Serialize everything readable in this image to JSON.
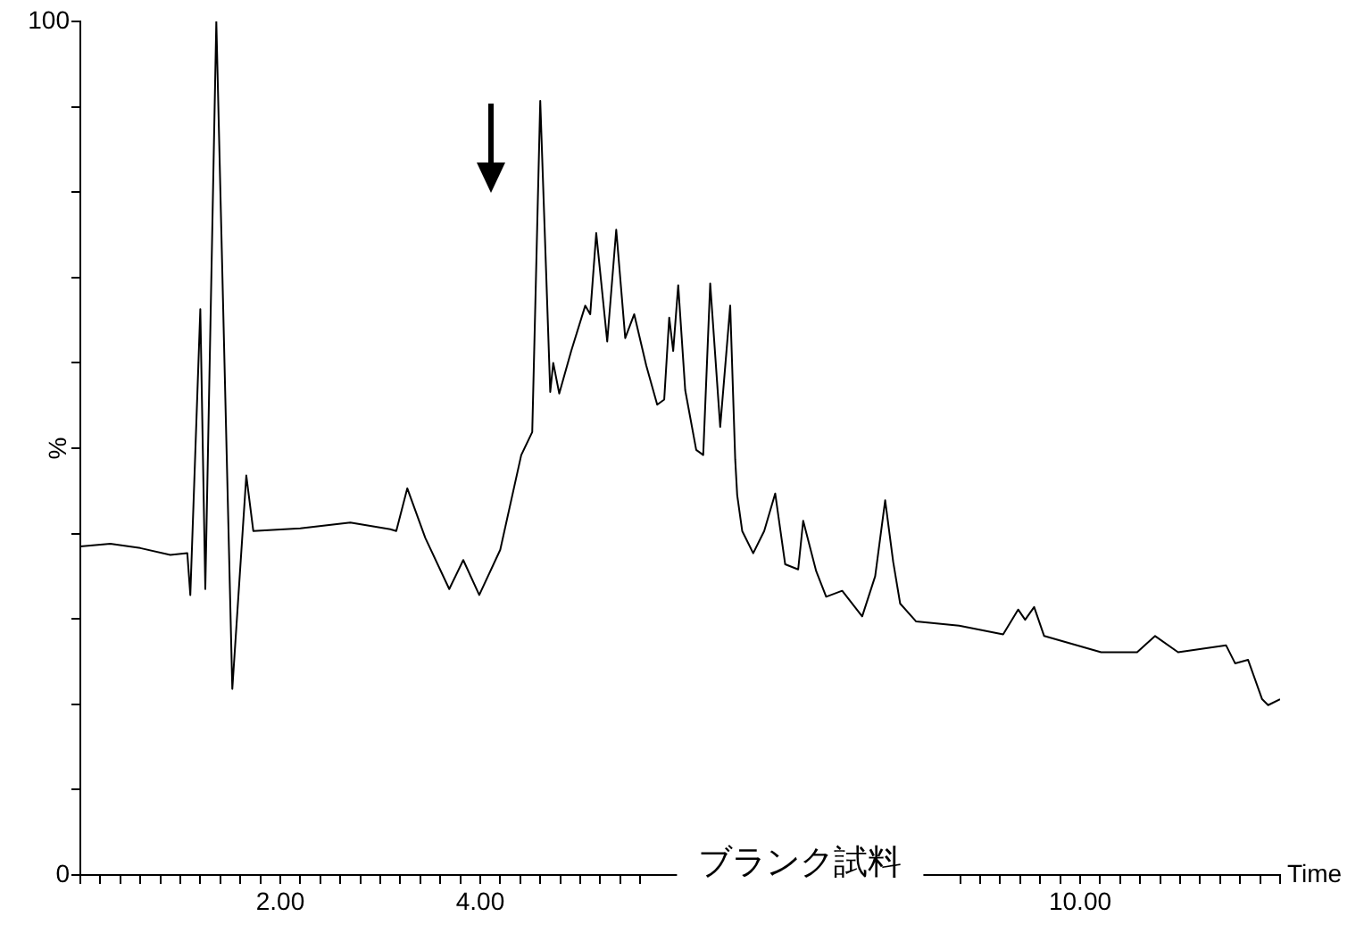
{
  "chart_data": {
    "type": "line",
    "title": "ブランク試料",
    "xlabel": "Time",
    "ylabel": "%",
    "xlim": [
      0,
      12
    ],
    "ylim": [
      0,
      100
    ],
    "xticks": [
      {
        "value": 0,
        "label": null
      },
      {
        "value": 0.2,
        "label": null
      },
      {
        "value": 0.4,
        "label": null
      },
      {
        "value": 0.6,
        "label": null
      },
      {
        "value": 0.8,
        "label": null
      },
      {
        "value": 1,
        "label": null
      },
      {
        "value": 1.2,
        "label": null
      },
      {
        "value": 1.4,
        "label": null
      },
      {
        "value": 1.6,
        "label": null
      },
      {
        "value": 1.8,
        "label": null
      },
      {
        "value": 2,
        "label": "2.00"
      },
      {
        "value": 2.2,
        "label": null
      },
      {
        "value": 2.4,
        "label": null
      },
      {
        "value": 2.6,
        "label": null
      },
      {
        "value": 2.8,
        "label": null
      },
      {
        "value": 3,
        "label": null
      },
      {
        "value": 3.2,
        "label": null
      },
      {
        "value": 3.4,
        "label": null
      },
      {
        "value": 3.6,
        "label": null
      },
      {
        "value": 3.8,
        "label": null
      },
      {
        "value": 4,
        "label": "4.00"
      },
      {
        "value": 4.2,
        "label": null
      },
      {
        "value": 4.4,
        "label": null
      },
      {
        "value": 4.6,
        "label": null
      },
      {
        "value": 4.8,
        "label": null
      },
      {
        "value": 5,
        "label": null
      },
      {
        "value": 5.2,
        "label": null
      },
      {
        "value": 5.4,
        "label": null
      },
      {
        "value": 5.6,
        "label": null
      },
      {
        "value": 8.8,
        "label": null
      },
      {
        "value": 9,
        "label": null
      },
      {
        "value": 9.2,
        "label": null
      },
      {
        "value": 9.4,
        "label": null
      },
      {
        "value": 9.6,
        "label": null
      },
      {
        "value": 9.8,
        "label": null
      },
      {
        "value": 10,
        "label": "10.00"
      },
      {
        "value": 10.2,
        "label": null
      },
      {
        "value": 10.4,
        "label": null
      },
      {
        "value": 10.6,
        "label": null
      },
      {
        "value": 10.8,
        "label": null
      },
      {
        "value": 11,
        "label": null
      },
      {
        "value": 11.2,
        "label": null
      },
      {
        "value": 11.4,
        "label": null
      },
      {
        "value": 11.6,
        "label": null
      },
      {
        "value": 11.8,
        "label": null
      },
      {
        "value": 12,
        "label": null
      }
    ],
    "yticks": [
      0,
      {
        "value": 10,
        "label": null
      },
      {
        "value": 20,
        "label": null
      },
      {
        "value": 30,
        "label": null
      },
      {
        "value": 40,
        "label": null
      },
      {
        "value": 50,
        "label": null
      },
      {
        "value": 60,
        "label": null
      },
      {
        "value": 70,
        "label": null
      },
      {
        "value": 80,
        "label": null
      },
      {
        "value": 90,
        "label": null
      },
      100
    ],
    "grid": false,
    "legend": false,
    "marker": "none",
    "line_style": "solid",
    "x": [
      0,
      0.3,
      0.6,
      0.9,
      1.07,
      1.1,
      1.2,
      1.25,
      1.36,
      1.52,
      1.66,
      1.73,
      2.2,
      2.7,
      3.1,
      3.16,
      3.27,
      3.45,
      3.69,
      3.83,
      3.99,
      4.2,
      4.41,
      4.52,
      4.6,
      4.7,
      4.73,
      4.79,
      4.91,
      5.05,
      5.1,
      5.16,
      5.27,
      5.36,
      5.45,
      5.54,
      5.66,
      5.77,
      5.84,
      5.89,
      5.93,
      5.98,
      6.05,
      6.16,
      6.23,
      6.3,
      6.4,
      6.46,
      6.5,
      6.55,
      6.57,
      6.62,
      6.73,
      6.84,
      6.95,
      7.05,
      7.18,
      7.23,
      7.36,
      7.46,
      7.62,
      7.82,
      7.95,
      8.05,
      8.13,
      8.2,
      8.36,
      8.79,
      9.23,
      9.38,
      9.45,
      9.54,
      9.64,
      10.21,
      10.57,
      10.75,
      10.98,
      11.46,
      11.55,
      11.68,
      11.82,
      11.88,
      12
    ],
    "series": [
      {
        "color": "#000000",
        "values": [
          38.5,
          38.8,
          38.3,
          37.5,
          37.7,
          32.8,
          66.3,
          33.5,
          100,
          21.8,
          46.8,
          40.3,
          40.6,
          41.3,
          40.5,
          40.3,
          45.3,
          39.5,
          33.5,
          36.9,
          32.8,
          38.1,
          49.2,
          51.9,
          90.7,
          56.6,
          60,
          56.4,
          61.4,
          66.7,
          65.7,
          75.2,
          62.5,
          75.6,
          62.9,
          65.7,
          59.7,
          55.1,
          55.7,
          65.3,
          61.4,
          69.1,
          56.8,
          49.8,
          49.2,
          69.3,
          52.5,
          61,
          66.7,
          48.7,
          44.5,
          40.3,
          37.7,
          40.3,
          44.7,
          36.4,
          35.8,
          41.5,
          35.6,
          32.6,
          33.3,
          30.3,
          35,
          43.9,
          36.7,
          31.8,
          29.7,
          29.2,
          28.2,
          31.1,
          29.9,
          31.4,
          28,
          26.1,
          26.1,
          28,
          26.1,
          26.9,
          24.8,
          25.2,
          20.6,
          19.9,
          20.6
        ]
      }
    ]
  }
}
